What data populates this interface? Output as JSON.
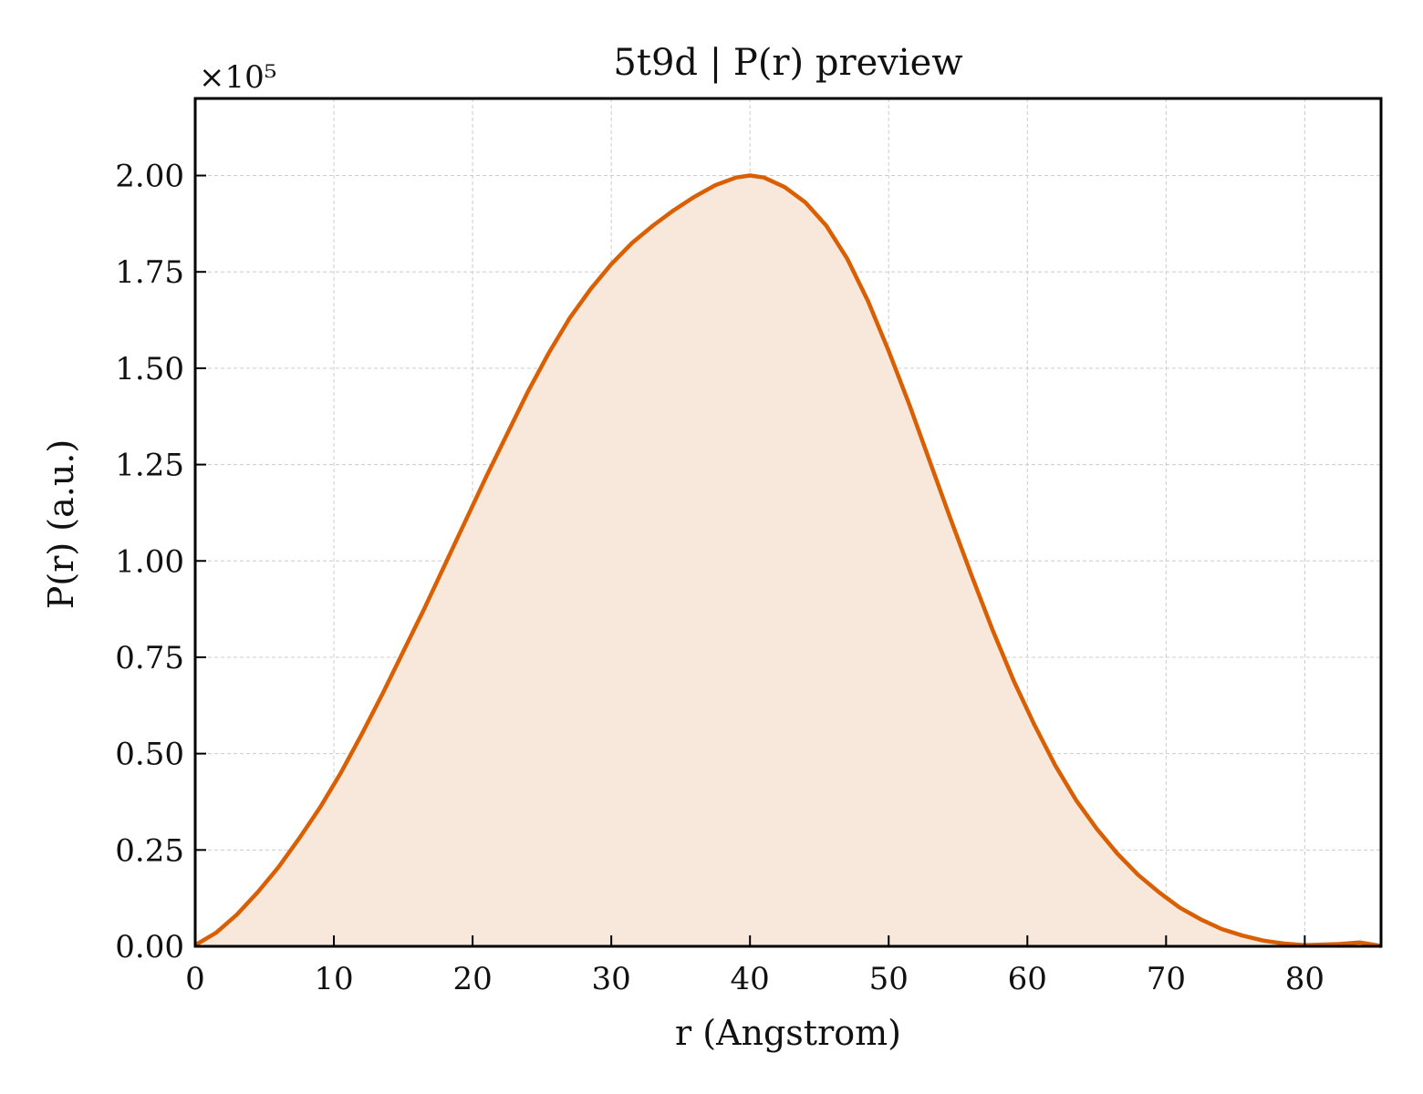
{
  "chart_data": {
    "type": "area",
    "title": "5t9d | P(r) preview",
    "xlabel": "r (Angstrom)",
    "ylabel": "P(r) (a.u.)",
    "y_multiplier_label": "×10⁵",
    "xlim": [
      0,
      85.5
    ],
    "ylim": [
      0,
      2.2
    ],
    "x_ticks": [
      0,
      10,
      20,
      30,
      40,
      50,
      60,
      70,
      80
    ],
    "x_tick_labels": [
      "0",
      "10",
      "20",
      "30",
      "40",
      "50",
      "60",
      "70",
      "80"
    ],
    "y_ticks": [
      0,
      0.25,
      0.5,
      0.75,
      1.0,
      1.25,
      1.5,
      1.75,
      2.0
    ],
    "y_tick_labels": [
      "0.00",
      "0.25",
      "0.50",
      "0.75",
      "1.00",
      "1.25",
      "1.50",
      "1.75",
      "2.00"
    ],
    "grid": true,
    "line_color": "#d95f02",
    "fill_color": "#f8e8dc",
    "series": [
      {
        "x": [
          0,
          1.5,
          3,
          4.5,
          6,
          7.5,
          9,
          10.5,
          12,
          13.5,
          15,
          16.5,
          18,
          19.5,
          21,
          22.5,
          24,
          25.5,
          27,
          28.5,
          30,
          31.5,
          33,
          34.5,
          36,
          37.5,
          39,
          40,
          41,
          42.5,
          44,
          45.5,
          47,
          48.5,
          50,
          51.5,
          53,
          54.5,
          56,
          57.5,
          59,
          60.5,
          62,
          63.5,
          65,
          66.5,
          68,
          69.5,
          71,
          72.5,
          74,
          75.5,
          77,
          78.5,
          80,
          81,
          82.5,
          84,
          85.5
        ],
        "values": [
          0.003,
          0.035,
          0.082,
          0.14,
          0.205,
          0.28,
          0.36,
          0.45,
          0.55,
          0.655,
          0.765,
          0.875,
          0.99,
          1.105,
          1.22,
          1.33,
          1.44,
          1.54,
          1.63,
          1.705,
          1.77,
          1.825,
          1.87,
          1.91,
          1.945,
          1.975,
          1.995,
          2.0,
          1.995,
          1.97,
          1.93,
          1.87,
          1.785,
          1.675,
          1.545,
          1.405,
          1.255,
          1.105,
          0.96,
          0.82,
          0.69,
          0.575,
          0.47,
          0.38,
          0.305,
          0.24,
          0.185,
          0.14,
          0.1,
          0.07,
          0.045,
          0.028,
          0.015,
          0.007,
          0.003,
          0.004,
          0.006,
          0.01,
          0.001
        ]
      }
    ]
  }
}
